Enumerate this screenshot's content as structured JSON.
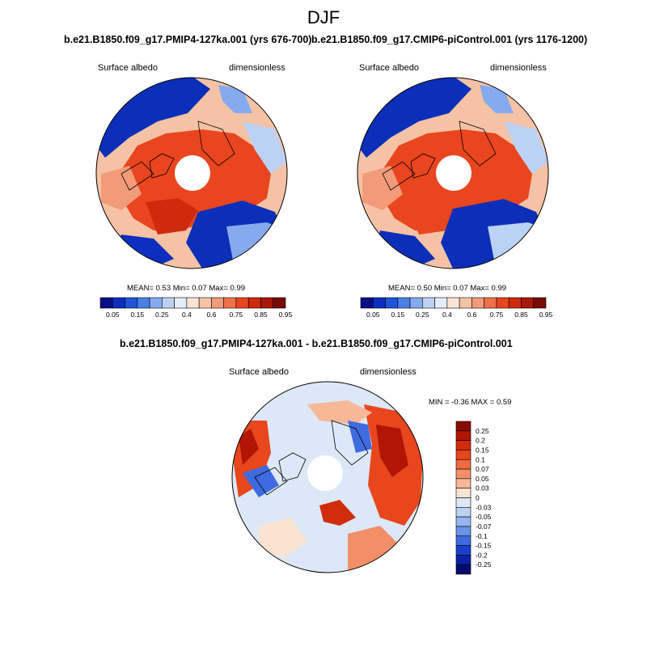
{
  "season": "DJF",
  "panels": [
    {
      "title": "b.e21.B1850.f09_g17.PMIP4-127ka.001 (yrs 676-700)",
      "variable": "Surface albedo",
      "units": "dimensionless",
      "stats": "MEAN=  0.53  Min=  0.07  Max=  0.99"
    },
    {
      "title": "b.e21.B1850.f09_g17.CMIP6-piControl.001 (yrs 1176-1200)",
      "variable": "Surface albedo",
      "units": "dimensionless",
      "stats": "MEAN=  0.50  Min=  0.07  Max=  0.99"
    }
  ],
  "diff_panel": {
    "title": "b.e21.B1850.f09_g17.PMIP4-127ka.001 - b.e21.B1850.f09_g17.CMIP6-piControl.001",
    "variable": "Surface albedo",
    "units": "dimensionless",
    "minmax": "MIN =  -0.36 MAX =   0.59"
  },
  "abs_colorbar": {
    "labels": [
      "0.05",
      "0.15",
      "0.25",
      "0.4",
      "0.6",
      "0.75",
      "0.85",
      "0.95"
    ],
    "colors": [
      "#0b0f86",
      "#0d2fbf",
      "#1f55db",
      "#4a7fe6",
      "#86aaee",
      "#bcd2f4",
      "#e4ecf8",
      "#fbe4d6",
      "#f6c2a5",
      "#f29b78",
      "#ef7149",
      "#e9451f",
      "#cf2a0c",
      "#a81707",
      "#7a0a04"
    ]
  },
  "diff_colorbar": {
    "labels": [
      "0.25",
      "0.2",
      "0.15",
      "0.1",
      "0.07",
      "0.05",
      "0.03",
      "0",
      "-0.03",
      "-0.05",
      "-0.07",
      "-0.1",
      "-0.15",
      "-0.2",
      "-0.25"
    ],
    "colors": [
      "#8a0a04",
      "#b01506",
      "#d12c0b",
      "#e8461d",
      "#ef6a3f",
      "#f28f69",
      "#f6b897",
      "#fbe3d2",
      "#dce8f7",
      "#bdd2f3",
      "#96b6ef",
      "#6a93e8",
      "#3f6be0",
      "#1a3fcc",
      "#0a21a8",
      "#040c6e"
    ]
  },
  "colors": {
    "ice_red": "#ef5a2a",
    "deep_blue": "#0b2fb8",
    "light_blue": "#dce8f7",
    "peach": "#fbe3d2"
  }
}
